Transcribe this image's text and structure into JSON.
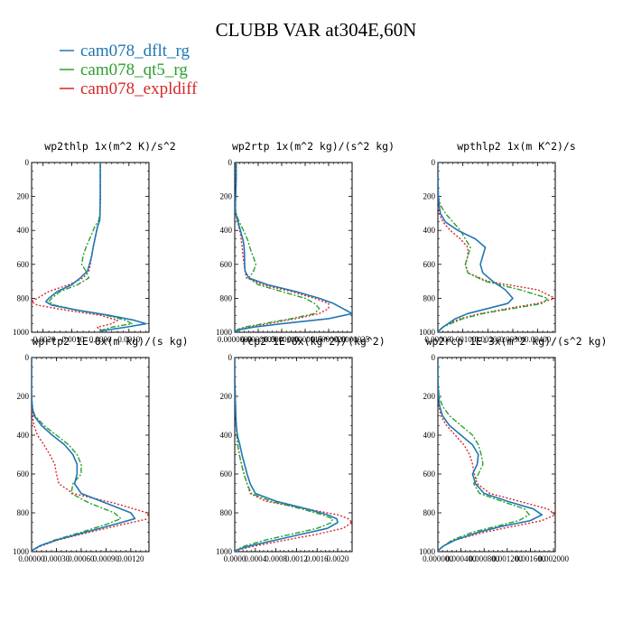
{
  "figure": {
    "title": "CLUBB VAR at304E,60N"
  },
  "legend": [
    {
      "label": "cam078_dflt_rg",
      "color": "#1f77b4"
    },
    {
      "label": "cam078_qt5_rg",
      "color": "#2ca02c"
    },
    {
      "label": "cam078_expldiff",
      "color": "#d62728"
    }
  ],
  "chart_data": [
    {
      "type": "line",
      "title": "wp2thlp   1x(m^2 K)/s^2",
      "xlim": [
        -0.0024,
        0.0017
      ],
      "ylim": [
        1000,
        0
      ],
      "xticks": [
        "-0.0020",
        "-0.0010",
        "0.0000",
        "0.0010"
      ],
      "yticks": [
        "0",
        "200",
        "400",
        "600",
        "800",
        "1000"
      ],
      "y": [
        0,
        100,
        200,
        300,
        340,
        380,
        420,
        460,
        500,
        550,
        600,
        640,
        680,
        720,
        760,
        800,
        820,
        840,
        870,
        900,
        930,
        950,
        970,
        990,
        1000
      ],
      "series": [
        {
          "name": "cam078_dflt_rg",
          "x": [
            0,
            0,
            0,
            -1e-05,
            -2e-05,
            -0.0001,
            -0.00015,
            -0.0002,
            -0.00025,
            -0.0003,
            -0.00038,
            -0.00045,
            -0.0007,
            -0.001,
            -0.0015,
            -0.0018,
            -0.0019,
            -0.0017,
            -0.0008,
            0.0003,
            0.0012,
            0.0016,
            0.0009,
            0.0001,
            0
          ]
        },
        {
          "name": "cam078_qt5_rg",
          "x": [
            0,
            0,
            0,
            -2e-05,
            -5e-05,
            -0.0002,
            -0.0003,
            -0.0004,
            -0.0005,
            -0.0006,
            -0.00065,
            -0.0005,
            -0.0004,
            -0.0008,
            -0.0014,
            -0.0017,
            -0.0018,
            -0.0016,
            -0.0008,
            0.0002,
            0.0009,
            0.0011,
            0.0004,
            0,
            0
          ]
        },
        {
          "name": "cam078_expldiff",
          "x": [
            0,
            0,
            0,
            -1e-05,
            -3e-05,
            -0.0001,
            -0.00015,
            -0.0002,
            -0.00025,
            -0.0003,
            -0.00035,
            -0.0004,
            -0.0006,
            -0.0011,
            -0.0018,
            -0.0022,
            -0.0024,
            -0.0022,
            -0.0012,
            0.0,
            0.0006,
            0.0004,
            -0.0001,
            0,
            0
          ]
        }
      ]
    },
    {
      "type": "line",
      "title": "wp2rtp   1x(m^2 kg)/(s^2 kg)",
      "xlim": [
        0,
        2.5e-06
      ],
      "ylim": [
        1000,
        0
      ],
      "xticks": [
        "0.0000000",
        "0.0000005",
        "0.0000010",
        "0.0000015",
        "0.0000020",
        "0.0000025"
      ],
      "yticks": [
        "0",
        "200",
        "400",
        "600",
        "800",
        "1000"
      ],
      "y": [
        0,
        100,
        200,
        260,
        300,
        340,
        380,
        420,
        460,
        500,
        560,
        600,
        640,
        680,
        720,
        760,
        800,
        830,
        860,
        890,
        920,
        950,
        970,
        985,
        1000
      ],
      "series": [
        {
          "name": "cam078_dflt_rg",
          "x": [
            3e-08,
            3e-08,
            2e-08,
            1e-08,
            2e-08,
            6e-08,
            1e-07,
            1.4e-07,
            1.8e-07,
            2e-07,
            2.1e-07,
            2.1e-07,
            2.2e-07,
            3e-07,
            7e-07,
            1.3e-06,
            1.8e-06,
            2.1e-06,
            2.3e-06,
            2.5e-06,
            2e-06,
            1e-06,
            4e-07,
            1e-07,
            0
          ]
        },
        {
          "name": "cam078_qt5_rg",
          "x": [
            3e-08,
            3e-08,
            2e-08,
            1e-08,
            3e-08,
            8e-08,
            1.5e-07,
            2.2e-07,
            2.8e-07,
            3.2e-07,
            4e-07,
            4.5e-07,
            4e-07,
            3e-07,
            5e-07,
            1e-06,
            1.5e-06,
            1.7e-06,
            1.8e-06,
            1.7e-06,
            1.2e-06,
            6e-07,
            2e-07,
            5e-08,
            0
          ]
        },
        {
          "name": "cam078_expldiff",
          "x": [
            3e-08,
            3e-08,
            2e-08,
            1e-08,
            2e-08,
            5e-08,
            9e-08,
            1.2e-07,
            1.4e-07,
            1.6e-07,
            1.8e-07,
            2e-07,
            2.2e-07,
            2.5e-07,
            6e-07,
            1.2e-06,
            1.7e-06,
            2e-06,
            2e-06,
            1.8e-06,
            1.3e-06,
            7e-07,
            3e-07,
            8e-08,
            0
          ]
        }
      ]
    },
    {
      "type": "line",
      "title": "wpthlp2   1x(m K^2)/s",
      "xlim": [
        0,
        0.0047
      ],
      "ylim": [
        1000,
        0
      ],
      "xticks": [
        "0.00000",
        "0.00100",
        "0.00200",
        "0.00300",
        "0.00400"
      ],
      "yticks": [
        "0",
        "200",
        "400",
        "600",
        "800",
        "1000"
      ],
      "y": [
        0,
        100,
        200,
        250,
        300,
        350,
        400,
        450,
        500,
        550,
        600,
        650,
        700,
        750,
        800,
        830,
        860,
        890,
        920,
        950,
        970,
        990,
        1000
      ],
      "series": [
        {
          "name": "cam078_dflt_rg",
          "x": [
            0,
            0,
            2e-05,
            5e-05,
            0.0001,
            0.0003,
            0.0008,
            0.0015,
            0.0019,
            0.0018,
            0.0017,
            0.0018,
            0.0022,
            0.0027,
            0.003,
            0.0028,
            0.002,
            0.0012,
            0.0007,
            0.0004,
            0.0002,
            5e-05,
            0
          ]
        },
        {
          "name": "cam078_qt5_rg",
          "x": [
            0,
            0,
            2e-05,
            0.0001,
            0.0003,
            0.0006,
            0.0009,
            0.0011,
            0.0013,
            0.0012,
            0.0011,
            0.0012,
            0.0019,
            0.0033,
            0.0044,
            0.0042,
            0.003,
            0.0018,
            0.001,
            0.0005,
            0.0002,
            5e-05,
            0
          ]
        },
        {
          "name": "cam078_expldiff",
          "x": [
            0,
            0,
            1e-05,
            2e-05,
            5e-05,
            0.0002,
            0.0005,
            0.0009,
            0.0012,
            0.0012,
            0.0011,
            0.0012,
            0.002,
            0.004,
            0.0047,
            0.004,
            0.0028,
            0.0017,
            0.0009,
            0.0004,
            0.0002,
            5e-05,
            0
          ]
        }
      ]
    },
    {
      "type": "line",
      "title": "wprtp2   1E-6x(m kg)/(s kg)",
      "xlim": [
        0,
        0.00142
      ],
      "ylim": [
        1000,
        0
      ],
      "xticks": [
        "0.00000",
        "0.00030",
        "0.00060",
        "0.00090",
        "0.00120"
      ],
      "yticks": [
        "0",
        "200",
        "400",
        "600",
        "800",
        "1000"
      ],
      "y": [
        0,
        100,
        200,
        260,
        300,
        350,
        400,
        450,
        500,
        550,
        600,
        650,
        700,
        750,
        800,
        830,
        860,
        900,
        940,
        970,
        990,
        1000
      ],
      "series": [
        {
          "name": "cam078_dflt_rg",
          "x": [
            0,
            0,
            0,
            1e-05,
            3e-05,
            0.00012,
            0.00025,
            0.0004,
            0.0005,
            0.00055,
            0.00055,
            0.00052,
            0.0006,
            0.0009,
            0.0012,
            0.00125,
            0.001,
            0.00065,
            0.0003,
            0.0001,
            2e-05,
            0
          ]
        },
        {
          "name": "cam078_qt5_rg",
          "x": [
            0,
            0,
            0,
            1e-05,
            4e-05,
            0.00015,
            0.0003,
            0.00045,
            0.00055,
            0.0006,
            0.0006,
            0.0005,
            0.00048,
            0.0007,
            0.001,
            0.00108,
            0.0009,
            0.0006,
            0.00028,
            0.0001,
            2e-05,
            0
          ]
        },
        {
          "name": "cam078_expldiff",
          "x": [
            0,
            0,
            0,
            5e-06,
            1e-05,
            3e-05,
            7e-05,
            0.00015,
            0.00022,
            0.00028,
            0.0003,
            0.00033,
            0.0005,
            0.001,
            0.0014,
            0.00142,
            0.0011,
            0.0007,
            0.00032,
            0.00012,
            2e-05,
            0
          ]
        }
      ]
    },
    {
      "type": "line",
      "title": "rcp2   1E-6x(kg^2)/(kg^2)",
      "xlim": [
        0,
        0.00228
      ],
      "ylim": [
        1000,
        0
      ],
      "xticks": [
        "0.0000",
        "0.0004",
        "0.0008",
        "0.0012",
        "0.0016",
        "0.0020"
      ],
      "yticks": [
        "0",
        "200",
        "400",
        "600",
        "800",
        "1000"
      ],
      "y": [
        0,
        100,
        200,
        300,
        350,
        400,
        450,
        500,
        550,
        600,
        650,
        700,
        740,
        780,
        810,
        830,
        850,
        880,
        910,
        940,
        970,
        990,
        1000
      ],
      "series": [
        {
          "name": "cam078_dflt_rg",
          "x": [
            0,
            0,
            1e-05,
            2e-05,
            3e-05,
            5e-05,
            0.0001,
            0.00014,
            0.00019,
            0.00024,
            0.0003,
            0.0004,
            0.0008,
            0.0014,
            0.0018,
            0.00198,
            0.002,
            0.0018,
            0.0013,
            0.0008,
            0.0003,
            5e-05,
            0
          ]
        },
        {
          "name": "cam078_qt5_rg",
          "x": [
            0,
            0,
            1e-05,
            2e-05,
            3e-05,
            4e-05,
            6e-05,
            9e-05,
            0.00013,
            0.00018,
            0.00024,
            0.00032,
            0.0007,
            0.0013,
            0.0017,
            0.0019,
            0.00188,
            0.0016,
            0.0011,
            0.0006,
            0.0002,
            4e-05,
            0
          ]
        },
        {
          "name": "cam078_expldiff",
          "x": [
            0,
            0,
            1e-05,
            2e-05,
            3e-05,
            4e-05,
            6e-05,
            9e-05,
            0.00013,
            0.00018,
            0.00024,
            0.0003,
            0.0006,
            0.0014,
            0.002,
            0.0022,
            0.00228,
            0.0021,
            0.0016,
            0.001,
            0.0004,
            8e-05,
            0
          ]
        }
      ]
    },
    {
      "type": "line",
      "title": "wp2rcp   1E-3x(m^2 kg)/(s^2 kg)",
      "xlim": [
        0,
        0.00203
      ],
      "ylim": [
        1000,
        0
      ],
      "xticks": [
        "0.000000",
        "0.000400",
        "0.000800",
        "0.001200",
        "0.001600",
        "0.002000"
      ],
      "yticks": [
        "0",
        "200",
        "400",
        "600",
        "800",
        "1000"
      ],
      "y": [
        0,
        100,
        200,
        250,
        300,
        350,
        400,
        450,
        500,
        550,
        600,
        650,
        700,
        740,
        780,
        810,
        840,
        870,
        900,
        940,
        970,
        990,
        1000
      ],
      "series": [
        {
          "name": "cam078_dflt_rg",
          "x": [
            0,
            0,
            1e-05,
            3e-05,
            8e-05,
            0.0002,
            0.0004,
            0.0006,
            0.0007,
            0.00068,
            0.0006,
            0.00065,
            0.0008,
            0.0012,
            0.00165,
            0.0018,
            0.0016,
            0.0011,
            0.0007,
            0.0003,
            0.0001,
            2e-05,
            0
          ]
        },
        {
          "name": "cam078_qt5_rg",
          "x": [
            0,
            0,
            2e-05,
            8e-05,
            0.0002,
            0.0004,
            0.0006,
            0.0007,
            0.00075,
            0.00078,
            0.0007,
            0.00062,
            0.00072,
            0.0011,
            0.0015,
            0.00158,
            0.0014,
            0.001,
            0.0006,
            0.00025,
            0.0001,
            2e-05,
            0
          ]
        },
        {
          "name": "cam078_expldiff",
          "x": [
            0,
            0,
            1e-05,
            2e-05,
            5e-05,
            0.00015,
            0.0003,
            0.00045,
            0.00055,
            0.0006,
            0.00063,
            0.00068,
            0.0009,
            0.0014,
            0.0019,
            0.00203,
            0.0018,
            0.0013,
            0.0008,
            0.0003,
            0.0001,
            2e-05,
            0
          ]
        }
      ]
    }
  ]
}
